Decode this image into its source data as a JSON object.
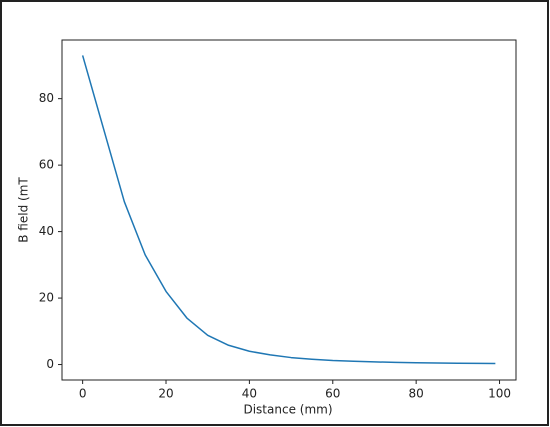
{
  "chart_data": {
    "type": "line",
    "x_label": "Distance (mm)",
    "y_label": "B field (mT",
    "x": [
      0,
      5,
      10,
      15,
      20,
      25,
      30,
      35,
      40,
      45,
      50,
      55,
      60,
      65,
      70,
      75,
      80,
      85,
      90,
      95,
      99
    ],
    "series": [
      {
        "color": "#1f77b4",
        "values": [
          93,
          71,
          49,
          33,
          22,
          14,
          8.8,
          5.8,
          4,
          2.9,
          2.1,
          1.6,
          1.2,
          1.0,
          0.8,
          0.65,
          0.55,
          0.47,
          0.4,
          0.34,
          0.3
        ]
      }
    ],
    "xlim": [
      -4.95,
      103.95
    ],
    "ylim": [
      -4.65,
      97.65
    ],
    "xticks": [
      0,
      20,
      40,
      60,
      80,
      100
    ],
    "yticks": [
      0,
      20,
      40,
      60,
      80
    ],
    "grid": false
  }
}
